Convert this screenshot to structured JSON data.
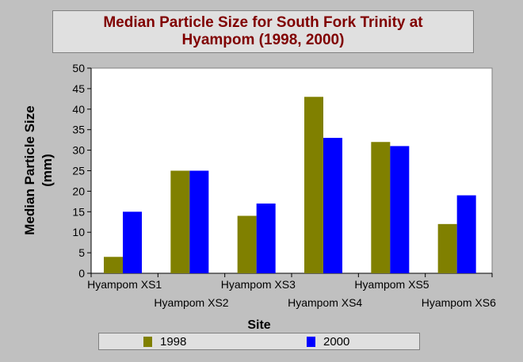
{
  "chart_data": {
    "type": "bar",
    "title_lines": [
      "Median Particle Size for South Fork Trinity at",
      "Hyampom (1998, 2000)"
    ],
    "xlabel": "Site",
    "ylabel_lines": [
      "Median Particle Size",
      "(mm)"
    ],
    "categories": [
      "Hyampom XS1",
      "Hyampom XS2",
      "Hyampom XS3",
      "Hyampom XS4",
      "Hyampom XS5",
      "Hyampom XS6"
    ],
    "series": [
      {
        "name": "1998",
        "color": "#808000",
        "values": [
          4,
          25,
          14,
          43,
          32,
          12
        ]
      },
      {
        "name": "2000",
        "color": "#0000ff",
        "values": [
          15,
          25,
          17,
          33,
          31,
          19
        ]
      }
    ],
    "ylim": [
      0,
      50
    ],
    "yticks": [
      0,
      5,
      10,
      15,
      20,
      25,
      30,
      35,
      40,
      45,
      50
    ],
    "grid": false,
    "legend_position": "bottom"
  }
}
